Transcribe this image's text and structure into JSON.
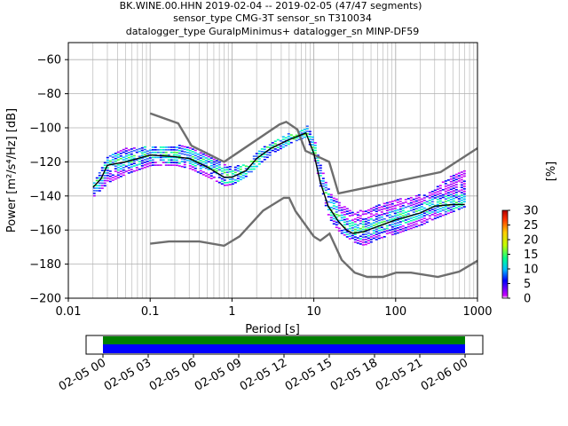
{
  "title_lines": [
    "BK.WINE.00.HHN   2019-02-04 -- 2019-02-05  (47/47 segments)",
    "sensor_type CMG-3T sensor_sn T310034",
    "datalogger_type GuralpMinimus+ datalogger_sn MINP-DF59"
  ],
  "chart_data": {
    "type": "heatmap",
    "xlabel": "Period [s]",
    "ylabel": "Power [m²/s⁴/Hz] [dB]",
    "xscale": "log",
    "xlim": [
      0.01,
      1000
    ],
    "ylim": [
      -200,
      -50
    ],
    "x_ticks": [
      {
        "value": 0.01,
        "label": "0.01"
      },
      {
        "value": 0.1,
        "label": "0.1"
      },
      {
        "value": 1,
        "label": "1"
      },
      {
        "value": 10,
        "label": "10"
      },
      {
        "value": 100,
        "label": "100"
      },
      {
        "value": 1000,
        "label": "1000"
      }
    ],
    "y_ticks": [
      {
        "value": -60,
        "label": "−60"
      },
      {
        "value": -80,
        "label": "−80"
      },
      {
        "value": -100,
        "label": "−100"
      },
      {
        "value": -120,
        "label": "−120"
      },
      {
        "value": -140,
        "label": "−140"
      },
      {
        "value": -160,
        "label": "−160"
      },
      {
        "value": -180,
        "label": "−180"
      },
      {
        "value": -200,
        "label": "−200"
      }
    ],
    "grid": true,
    "noise_model_high": {
      "x": [
        0.1,
        0.22,
        0.32,
        0.8,
        3.8,
        4.6,
        6.3,
        7.9,
        15.4,
        20,
        354.8,
        1000
      ],
      "y": [
        -91.5,
        -97.4,
        -110.5,
        -120,
        -98,
        -96.5,
        -101,
        -113.5,
        -120,
        -138.5,
        -126,
        -112
      ]
    },
    "noise_model_low": {
      "x": [
        0.1,
        0.17,
        0.4,
        0.8,
        1.24,
        2.4,
        4.3,
        5.0,
        6.0,
        10.0,
        12.0,
        15.6,
        21.9,
        31.6,
        45,
        70,
        101,
        154,
        328,
        600,
        1000
      ],
      "y": [
        -168,
        -166.7,
        -166.7,
        -169.2,
        -163.7,
        -148.6,
        -141.1,
        -141.1,
        -149.0,
        -163.8,
        -166.2,
        -162.1,
        -177.5,
        -185.0,
        -187.5,
        -187.5,
        -185.0,
        -185.0,
        -187.5,
        -184.4,
        -178.0
      ]
    },
    "median": {
      "x": [
        0.02,
        0.025,
        0.03,
        0.05,
        0.1,
        0.2,
        0.3,
        0.5,
        0.8,
        1.0,
        1.5,
        2,
        3,
        5,
        8,
        10,
        12,
        15,
        20,
        25,
        30,
        40,
        60,
        100,
        200,
        300,
        500,
        700
      ],
      "y": [
        -135,
        -130,
        -122,
        -120,
        -116,
        -117,
        -118,
        -123,
        -129,
        -129,
        -125,
        -118,
        -112,
        -107,
        -103,
        -115,
        -132,
        -146,
        -155,
        -160,
        -162,
        -161,
        -158,
        -154,
        -150,
        -146,
        -145,
        -145
      ]
    },
    "psd_band": {
      "x": [
        0.02,
        0.03,
        0.05,
        0.1,
        0.2,
        0.3,
        0.5,
        0.8,
        1.0,
        1.5,
        2,
        3,
        5,
        8,
        10,
        12,
        15,
        20,
        30,
        40,
        60,
        100,
        200,
        300,
        500,
        700
      ],
      "top": [
        -133,
        -117,
        -113,
        -112,
        -111,
        -112,
        -116,
        -123,
        -124,
        -122,
        -115,
        -109,
        -104,
        -100,
        -109,
        -125,
        -138,
        -145,
        -150,
        -149,
        -146,
        -143,
        -140,
        -136,
        -128,
        -126
      ],
      "bottom": [
        -141,
        -133,
        -128,
        -123,
        -123,
        -125,
        -130,
        -135,
        -134,
        -129,
        -123,
        -116,
        -110,
        -106,
        -120,
        -138,
        -154,
        -162,
        -168,
        -170,
        -166,
        -163,
        -158,
        -154,
        -150,
        -147
      ]
    },
    "colorbar": {
      "label": "[%]",
      "range": [
        0,
        30
      ],
      "ticks": [
        {
          "value": 0,
          "label": "0"
        },
        {
          "value": 5,
          "label": "5"
        },
        {
          "value": 10,
          "label": "10"
        },
        {
          "value": 15,
          "label": "15"
        },
        {
          "value": 20,
          "label": "20"
        },
        {
          "value": 25,
          "label": "25"
        },
        {
          "value": 30,
          "label": "30"
        }
      ],
      "colors": [
        "#ffffff",
        "#cc00ff",
        "#0000ff",
        "#00c0ff",
        "#00ff90",
        "#c0ff00",
        "#ffcc00",
        "#ff3000",
        "#b00000"
      ]
    }
  },
  "timeline": {
    "tick_labels": [
      "02-05 00",
      "02-05 03",
      "02-05 06",
      "02-05 09",
      "02-05 12",
      "02-05 15",
      "02-05 18",
      "02-05 21",
      "02-06 00"
    ],
    "green_color": "#008000",
    "blue_color": "#0000ff"
  }
}
